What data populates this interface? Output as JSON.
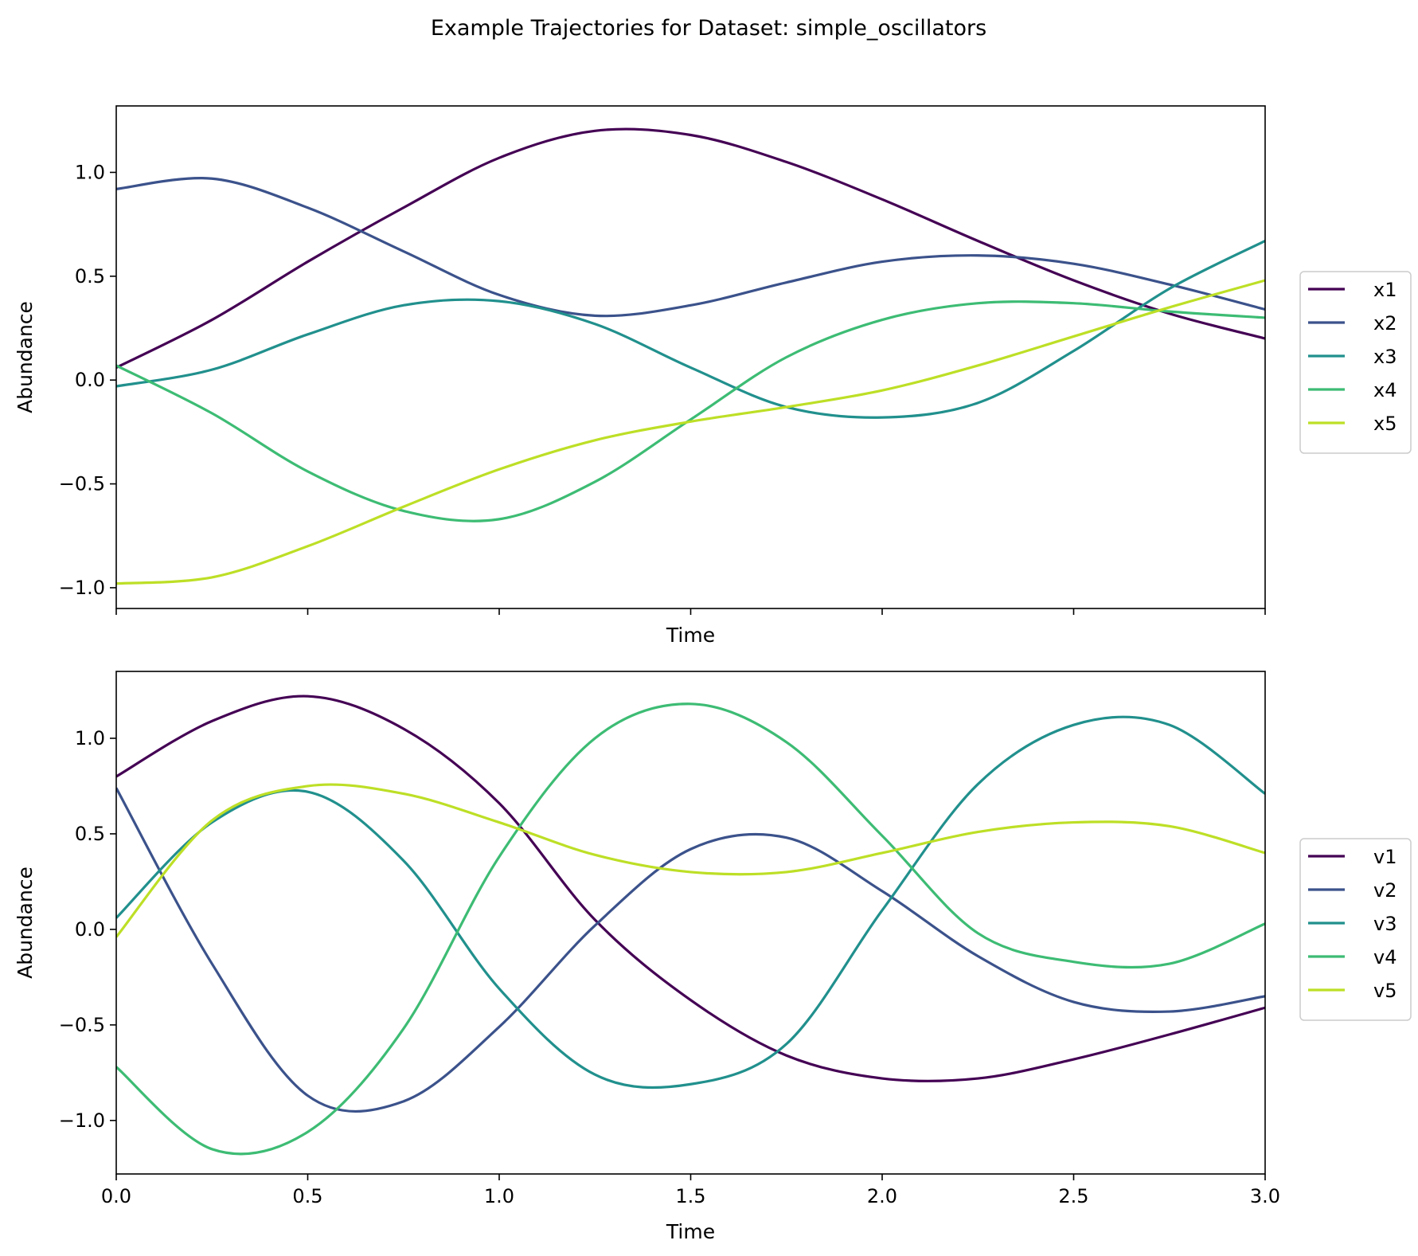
{
  "figure": {
    "title": "Example Trajectories for Dataset: simple_oscillators"
  },
  "chart_data": [
    {
      "type": "line",
      "xlabel": "Time",
      "ylabel": "Abundance",
      "xlim": [
        0,
        3
      ],
      "ylim": [
        -1.1,
        1.32
      ],
      "xticks": [
        0,
        0.5,
        1.0,
        1.5,
        2.0,
        2.5,
        3.0
      ],
      "xticklabels_shown": false,
      "yticks": [
        -1.0,
        -0.5,
        0.0,
        0.5,
        1.0
      ],
      "yticklabels": [
        "−1.0",
        "−0.5",
        "0.0",
        "0.5",
        "1.0"
      ],
      "grid": false,
      "legend_position": "right",
      "x": [
        0,
        0.25,
        0.5,
        0.75,
        1.0,
        1.25,
        1.5,
        1.75,
        2.0,
        2.25,
        2.5,
        2.75,
        3.0
      ],
      "series": [
        {
          "name": "x1",
          "color": "#440154",
          "values": [
            0.06,
            0.29,
            0.57,
            0.83,
            1.07,
            1.2,
            1.18,
            1.05,
            0.87,
            0.67,
            0.48,
            0.32,
            0.2
          ]
        },
        {
          "name": "x2",
          "color": "#3b528b",
          "values": [
            0.92,
            0.97,
            0.83,
            0.62,
            0.41,
            0.31,
            0.36,
            0.47,
            0.57,
            0.6,
            0.56,
            0.46,
            0.34
          ]
        },
        {
          "name": "x3",
          "color": "#21908d",
          "values": [
            -0.03,
            0.05,
            0.22,
            0.36,
            0.38,
            0.27,
            0.06,
            -0.13,
            -0.18,
            -0.11,
            0.14,
            0.44,
            0.67
          ]
        },
        {
          "name": "x4",
          "color": "#3dbc74",
          "values": [
            0.07,
            -0.16,
            -0.44,
            -0.63,
            -0.67,
            -0.49,
            -0.19,
            0.11,
            0.29,
            0.37,
            0.37,
            0.33,
            0.3
          ]
        },
        {
          "name": "x5",
          "color": "#bddf26",
          "values": [
            -0.98,
            -0.95,
            -0.8,
            -0.61,
            -0.43,
            -0.29,
            -0.2,
            -0.13,
            -0.05,
            0.07,
            0.21,
            0.35,
            0.48
          ]
        }
      ]
    },
    {
      "type": "line",
      "xlabel": "Time",
      "ylabel": "Abundance",
      "xlim": [
        0,
        3
      ],
      "ylim": [
        -1.28,
        1.35
      ],
      "xticks": [
        0,
        0.5,
        1.0,
        1.5,
        2.0,
        2.5,
        3.0
      ],
      "xticklabels": [
        "0.0",
        "0.5",
        "1.0",
        "1.5",
        "2.0",
        "2.5",
        "3.0"
      ],
      "yticks": [
        -1.0,
        -0.5,
        0.0,
        0.5,
        1.0
      ],
      "yticklabels": [
        "−1.0",
        "−0.5",
        "0.0",
        "0.5",
        "1.0"
      ],
      "grid": false,
      "legend_position": "right",
      "x": [
        0,
        0.25,
        0.5,
        0.75,
        1.0,
        1.25,
        1.5,
        1.75,
        2.0,
        2.25,
        2.5,
        2.75,
        3.0
      ],
      "series": [
        {
          "name": "v1",
          "color": "#440154",
          "values": [
            0.8,
            1.09,
            1.22,
            1.05,
            0.66,
            0.05,
            -0.37,
            -0.66,
            -0.78,
            -0.78,
            -0.68,
            -0.55,
            -0.41
          ]
        },
        {
          "name": "v2",
          "color": "#3b528b",
          "values": [
            0.74,
            -0.18,
            -0.87,
            -0.9,
            -0.51,
            0.02,
            0.42,
            0.48,
            0.2,
            -0.14,
            -0.38,
            -0.43,
            -0.35
          ]
        },
        {
          "name": "v3",
          "color": "#21908d",
          "values": [
            0.06,
            0.56,
            0.72,
            0.36,
            -0.31,
            -0.76,
            -0.81,
            -0.6,
            0.1,
            0.76,
            1.07,
            1.07,
            0.71
          ]
        },
        {
          "name": "v4",
          "color": "#3dbc74",
          "values": [
            -0.72,
            -1.15,
            -1.06,
            -0.52,
            0.38,
            1.0,
            1.18,
            0.98,
            0.49,
            -0.02,
            -0.17,
            -0.18,
            0.03
          ]
        },
        {
          "name": "v5",
          "color": "#bddf26",
          "values": [
            -0.04,
            0.57,
            0.75,
            0.71,
            0.56,
            0.39,
            0.3,
            0.3,
            0.4,
            0.51,
            0.56,
            0.54,
            0.4
          ]
        }
      ]
    }
  ]
}
